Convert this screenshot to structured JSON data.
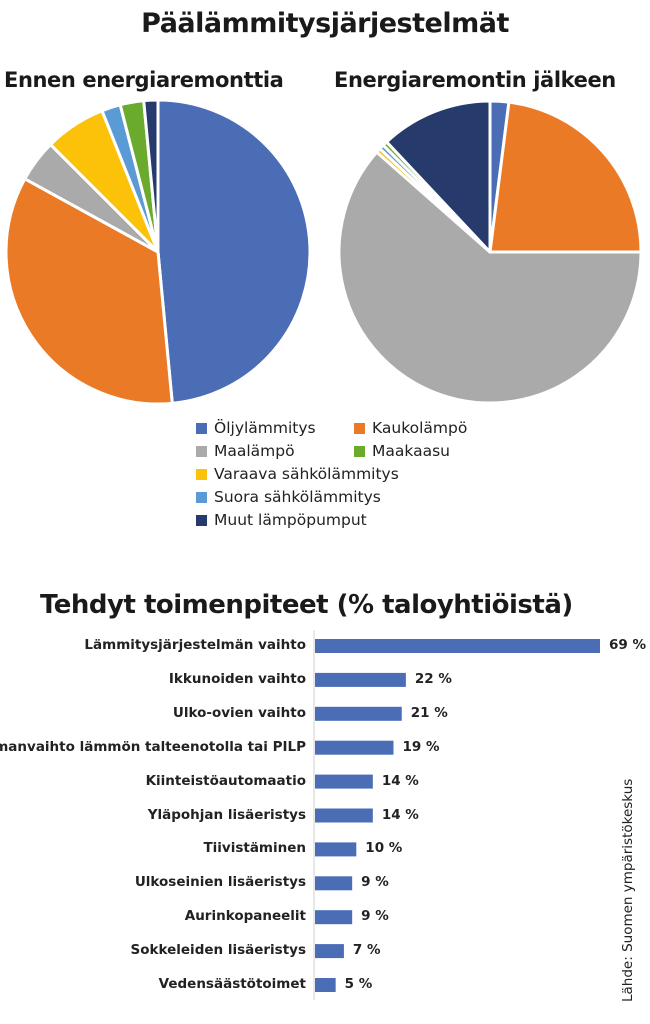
{
  "title": "Päälämmitysjärjestelmät",
  "colors": {
    "Öljylämmitys": "#4a6db5",
    "Kaukolämpö": "#ea7a25",
    "Maalämpö": "#aaaaaa",
    "Maakaasu": "#6aab2e",
    "Varaava sähkölämmitys": "#fcc20a",
    "Suora sähkölämmitys": "#5b9bd5",
    "Muut lämpöpumput": "#263a6b",
    "bar": "#4a6db5"
  },
  "chart_data": [
    {
      "type": "pie",
      "title": "Ennen energiaremonttia",
      "start_angle_deg": 0,
      "direction": "clockwise",
      "slices": [
        {
          "label": "Öljylämmitys",
          "value": 48.5
        },
        {
          "label": "Kaukolämpö",
          "value": 34.5
        },
        {
          "label": "Maalämpö",
          "value": 4.5
        },
        {
          "label": "Varaava sähkölämmitys",
          "value": 6.5
        },
        {
          "label": "Suora sähkölämmitys",
          "value": 2
        },
        {
          "label": "Maakaasu",
          "value": 2.5
        },
        {
          "label": "Muut lämpöpumput",
          "value": 1.5
        }
      ]
    },
    {
      "type": "pie",
      "title": "Energiaremontin jälkeen",
      "start_angle_deg": 0,
      "direction": "clockwise",
      "slices": [
        {
          "label": "Öljylämmitys",
          "value": 2
        },
        {
          "label": "Kaukolämpö",
          "value": 23
        },
        {
          "label": "Maalämpö",
          "value": 61.5
        },
        {
          "label": "Varaava sähkölämmitys",
          "value": 0.5
        },
        {
          "label": "Suora sähkölämmitys",
          "value": 0.5
        },
        {
          "label": "Maakaasu",
          "value": 0.5
        },
        {
          "label": "Muut lämpöpumput",
          "value": 12
        }
      ]
    },
    {
      "type": "bar",
      "orientation": "horizontal",
      "title": "Tehdyt toimenpiteet (% taloyhtiöistä)",
      "categories": [
        "Lämmitysjärjestelmän vaihto",
        "Ikkunoiden vaihto",
        "Ulko-ovien vaihto",
        "Ilmanvaihto lämmön talteenotolla tai PILP",
        "Kiinteistöautomaatio",
        "Yläpohjan lisäeristys",
        "Tiivistäminen",
        "Ulkoseinien lisäeristys",
        "Aurinkopaneelit",
        "Sokkeleiden lisäeristys",
        "Vedensäästötoimet"
      ],
      "values": [
        69,
        22,
        21,
        19,
        14,
        14,
        10,
        9,
        9,
        7,
        5
      ],
      "value_labels": [
        "69 %",
        "22 %",
        "21 %",
        "19 %",
        "14 %",
        "14 %",
        "10 %",
        "9 %",
        "9 %",
        "7 %",
        "5 %"
      ],
      "xlim": [
        0,
        69
      ]
    }
  ],
  "legend": {
    "items": [
      {
        "label": "Öljylämmitys"
      },
      {
        "label": "Kaukolämpö"
      },
      {
        "label": "Maalämpö"
      },
      {
        "label": "Maakaasu"
      },
      {
        "label": "Varaava sähkölämmitys"
      },
      {
        "label": "Suora sähkölämmitys"
      },
      {
        "label": "Muut lämpöpumput"
      }
    ]
  },
  "source": "Lähde: Suomen ympäristökeskus"
}
